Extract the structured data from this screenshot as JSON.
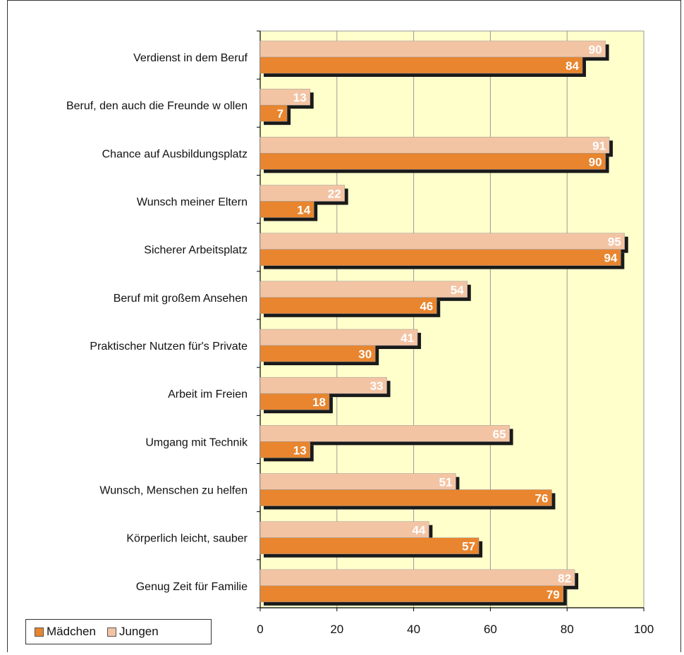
{
  "chart_data": {
    "type": "bar",
    "orientation": "horizontal",
    "categories": [
      "Verdienst in dem Beruf",
      "Beruf, den auch die Freunde w ollen",
      "Chance auf Ausbildungsplatz",
      "Wunsch meiner Eltern",
      "Sicherer Arbeitsplatz",
      "Beruf mit großem Ansehen",
      "Praktischer Nutzen für's Private",
      "Arbeit im Freien",
      "Umgang mit Technik",
      "Wunsch, Menschen zu helfen",
      "Körperlich leicht, sauber",
      "Genug Zeit für Familie"
    ],
    "series": [
      {
        "name": "Jungen",
        "color": "#f3c4a4",
        "values": [
          90,
          13,
          91,
          22,
          95,
          54,
          41,
          33,
          65,
          51,
          44,
          82
        ]
      },
      {
        "name": "Mädchen",
        "color": "#e8852e",
        "values": [
          84,
          7,
          90,
          14,
          94,
          46,
          30,
          18,
          13,
          76,
          57,
          79
        ]
      }
    ],
    "xlim": [
      0,
      100
    ],
    "xticks": [
      0,
      20,
      40,
      60,
      80,
      100
    ],
    "grid": true,
    "plot_background": "#ffffcc",
    "legend": {
      "position": "bottom-left",
      "order": [
        "Mädchen",
        "Jungen"
      ]
    }
  }
}
